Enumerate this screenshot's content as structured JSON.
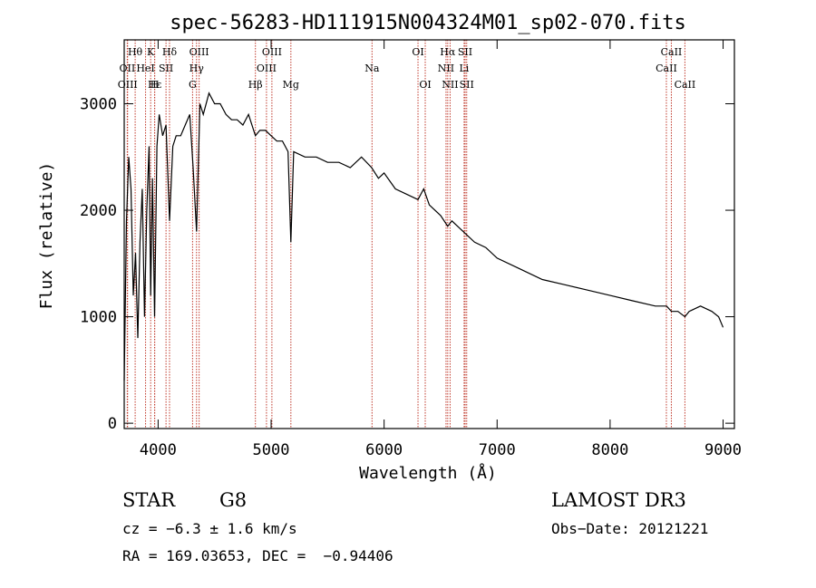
{
  "chart_data": {
    "type": "line",
    "title": "spec-56283-HD111915N004324M01_sp02-070.fits",
    "xlabel": "Wavelength (Å)",
    "ylabel": "Flux (relative)",
    "xlim": [
      3700,
      9100
    ],
    "ylim": [
      -50,
      3600
    ],
    "x_ticks": [
      4000,
      5000,
      6000,
      7000,
      8000,
      9000
    ],
    "y_ticks": [
      0,
      1000,
      2000,
      3000
    ],
    "series": [
      {
        "name": "flux",
        "x": [
          3700,
          3720,
          3740,
          3760,
          3780,
          3800,
          3820,
          3840,
          3860,
          3880,
          3900,
          3920,
          3934,
          3950,
          3969,
          3990,
          4010,
          4040,
          4070,
          4101,
          4130,
          4160,
          4200,
          4240,
          4280,
          4310,
          4340,
          4370,
          4400,
          4450,
          4500,
          4550,
          4600,
          4650,
          4700,
          4750,
          4800,
          4861,
          4900,
          4950,
          5000,
          5050,
          5100,
          5150,
          5175,
          5200,
          5300,
          5400,
          5500,
          5600,
          5700,
          5800,
          5890,
          5950,
          6000,
          6100,
          6200,
          6300,
          6350,
          6400,
          6500,
          6563,
          6600,
          6700,
          6800,
          6900,
          7000,
          7200,
          7400,
          7600,
          7800,
          8000,
          8200,
          8400,
          8500,
          8542,
          8600,
          8662,
          8700,
          8800,
          8900,
          8960,
          9000
        ],
        "values": [
          400,
          1900,
          2500,
          2200,
          1200,
          1600,
          800,
          1700,
          2200,
          1000,
          2000,
          2600,
          1200,
          2300,
          1000,
          2600,
          2900,
          2700,
          2800,
          1900,
          2600,
          2700,
          2700,
          2800,
          2900,
          2400,
          1800,
          3000,
          2900,
          3100,
          3000,
          3000,
          2900,
          2850,
          2850,
          2800,
          2900,
          2700,
          2750,
          2750,
          2700,
          2650,
          2650,
          2550,
          1700,
          2550,
          2500,
          2500,
          2450,
          2450,
          2400,
          2500,
          2400,
          2300,
          2350,
          2200,
          2150,
          2100,
          2200,
          2050,
          1950,
          1850,
          1900,
          1800,
          1700,
          1650,
          1550,
          1450,
          1350,
          1300,
          1250,
          1200,
          1150,
          1100,
          1100,
          1050,
          1050,
          1000,
          1050,
          1100,
          1050,
          1000,
          900
        ]
      }
    ],
    "lines": [
      {
        "name": "Hθ",
        "wave": 3797,
        "row": 1
      },
      {
        "name": "OII",
        "wave": 3727,
        "row": 2
      },
      {
        "name": "OIII",
        "wave": 3730,
        "row": 3
      },
      {
        "name": "K",
        "wave": 3934,
        "row": 1
      },
      {
        "name": "HeI",
        "wave": 3889,
        "row": 2
      },
      {
        "name": "Hε",
        "wave": 3970,
        "row": 3
      },
      {
        "name": "H",
        "wave": 3969,
        "row": 3
      },
      {
        "name": "Hδ",
        "wave": 4101,
        "row": 1
      },
      {
        "name": "SII",
        "wave": 4070,
        "row": 2
      },
      {
        "name": "OIII",
        "wave": 4363,
        "row": 1
      },
      {
        "name": "Hγ",
        "wave": 4340,
        "row": 2
      },
      {
        "name": "G",
        "wave": 4305,
        "row": 3
      },
      {
        "name": "Hβ",
        "wave": 4861,
        "row": 3
      },
      {
        "name": "OIII",
        "wave": 4959,
        "row": 2
      },
      {
        "name": "OIII",
        "wave": 5007,
        "row": 1
      },
      {
        "name": "Mg",
        "wave": 5175,
        "row": 3
      },
      {
        "name": "Na",
        "wave": 5893,
        "row": 2
      },
      {
        "name": "OI",
        "wave": 6300,
        "row": 1
      },
      {
        "name": "OI",
        "wave": 6364,
        "row": 3
      },
      {
        "name": "Hα",
        "wave": 6563,
        "row": 1
      },
      {
        "name": "NII",
        "wave": 6548,
        "row": 2
      },
      {
        "name": "NII",
        "wave": 6584,
        "row": 3
      },
      {
        "name": "SII",
        "wave": 6717,
        "row": 1
      },
      {
        "name": "Li",
        "wave": 6708,
        "row": 2
      },
      {
        "name": "SII",
        "wave": 6731,
        "row": 3
      },
      {
        "name": "CaII",
        "wave": 8542,
        "row": 1
      },
      {
        "name": "CaII",
        "wave": 8498,
        "row": 2
      },
      {
        "name": "CaII",
        "wave": 8662,
        "row": 3
      }
    ]
  },
  "info": {
    "class": "STAR",
    "subclass": "G8",
    "survey": "LAMOST DR3",
    "cz": "cz = −6.3 ± 1.6 km/s",
    "obs_date": "Obs−Date: 20121221",
    "coords": "RA = 169.03653, DEC =  −0.94406"
  },
  "colors": {
    "line_marker": "#c0392b",
    "spectrum": "#000000"
  }
}
